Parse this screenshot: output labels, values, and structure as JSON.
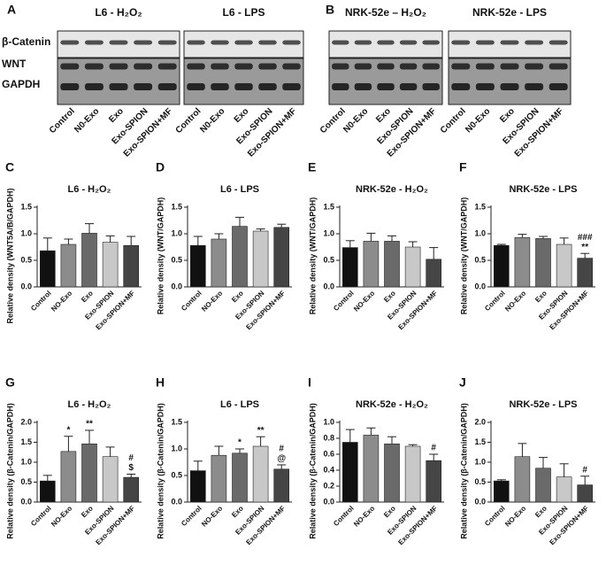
{
  "blot_figures": [
    {
      "letter": "A",
      "row_labels": [
        "β-Catenin",
        "WNT",
        "GAPDH"
      ],
      "blots": [
        {
          "title": "L6 - H₂O₂",
          "lanes": [
            "Control",
            "N0-Exo",
            "Exo",
            "Exo-SPION",
            "Exo-SPION+MF"
          ]
        },
        {
          "title": "L6 - LPS",
          "lanes": [
            "Control",
            "N0-Exo",
            "Exo",
            "Exo-SPION",
            "Exo-SPION+MF"
          ]
        }
      ]
    },
    {
      "letter": "B",
      "blots": [
        {
          "title": "NRK-52e – H₂O₂",
          "lanes": [
            "Control",
            "N0-Exo",
            "Exo",
            "Exo-SPION",
            "Exo-SPION+MF"
          ]
        },
        {
          "title": "NRK-52e - LPS",
          "lanes": [
            "Control",
            "N0-Exo",
            "Exo",
            "Exo-SPION",
            "Exo-SPION+MF"
          ]
        }
      ]
    }
  ],
  "chart_data": [
    {
      "type": "bar",
      "panel": "C",
      "title": "L6 - H₂O₂",
      "y_label": "Relative density (WNT5A/B/GAPDH)",
      "categories": [
        "Control",
        "NO-Exo",
        "Exo",
        "Exo-SPION",
        "Exo-SPION+MF"
      ],
      "values": [
        0.68,
        0.8,
        1.01,
        0.84,
        0.78
      ],
      "errors": [
        0.24,
        0.1,
        0.18,
        0.12,
        0.17
      ],
      "colors": [
        "#111111",
        "#8c8c8c",
        "#6a6a6a",
        "#c8c8c8",
        "#454545"
      ],
      "ylim": [
        0,
        1.5
      ],
      "yticks": [
        {
          "value": 0,
          "label": "0.0"
        },
        0.5,
        {
          "value": 1,
          "label": "1.0"
        },
        1.5
      ]
    },
    {
      "type": "bar",
      "panel": "D",
      "title": "L6 - LPS",
      "y_label": "Relative density (WNT/GAPDH)",
      "categories": [
        "Control",
        "NO-Exo",
        "Exo",
        "Exo-SPION",
        "Exo-SPION+MF"
      ],
      "values": [
        0.78,
        0.9,
        1.14,
        1.05,
        1.12
      ],
      "errors": [
        0.17,
        0.1,
        0.17,
        0.04,
        0.06
      ],
      "colors": [
        "#111111",
        "#8c8c8c",
        "#6a6a6a",
        "#c8c8c8",
        "#454545"
      ],
      "ylim": [
        0,
        1.5
      ],
      "yticks": [
        {
          "value": 0,
          "label": "0.0"
        },
        0.5,
        {
          "value": 1,
          "label": "1.0"
        },
        1.5
      ]
    },
    {
      "type": "bar",
      "panel": "E",
      "title": "NRK-52e - H₂O₂",
      "y_label": "Relative density (WNT/GAPDH)",
      "categories": [
        "Control",
        "NO-Exo",
        "Exo",
        "Exo-SPION",
        "Exo-SPION+MF"
      ],
      "values": [
        0.74,
        0.86,
        0.86,
        0.75,
        0.52
      ],
      "errors": [
        0.13,
        0.15,
        0.1,
        0.1,
        0.22
      ],
      "colors": [
        "#111111",
        "#8c8c8c",
        "#6a6a6a",
        "#c8c8c8",
        "#454545"
      ],
      "ylim": [
        0,
        1.5
      ],
      "yticks": [
        {
          "value": 0,
          "label": "0.0"
        },
        0.5,
        {
          "value": 1,
          "label": "1.0"
        },
        1.5
      ]
    },
    {
      "type": "bar",
      "panel": "F",
      "title": "NRK-52e - LPS",
      "y_label": "Relative density (WNT/GAPDH)",
      "categories": [
        "Control",
        "NO-Exo",
        "Exo",
        "Exo-SPION",
        "Exo-SPION+MF"
      ],
      "values": [
        0.78,
        0.93,
        0.91,
        0.8,
        0.54
      ],
      "errors": [
        0.02,
        0.06,
        0.04,
        0.12,
        0.09
      ],
      "annotations": [
        null,
        null,
        null,
        null,
        [
          "###",
          "**"
        ]
      ],
      "colors": [
        "#111111",
        "#8c8c8c",
        "#6a6a6a",
        "#c8c8c8",
        "#454545"
      ],
      "ylim": [
        0,
        1.5
      ],
      "yticks": [
        {
          "value": 0,
          "label": "0.0"
        },
        0.5,
        {
          "value": 1,
          "label": "1.0"
        },
        1.5
      ]
    },
    {
      "type": "bar",
      "panel": "G",
      "title": "L6 - H₂O₂",
      "y_label": "Relative density (β-Catenin/GAPDH)",
      "categories": [
        "Control",
        "NO-Exo",
        "Exo",
        "Exo-SPION",
        "Exo-SPION+MF"
      ],
      "values": [
        0.53,
        1.27,
        1.46,
        1.14,
        0.62
      ],
      "errors": [
        0.14,
        0.38,
        0.34,
        0.24,
        0.08
      ],
      "annotations": [
        null,
        [
          "*"
        ],
        [
          "**"
        ],
        null,
        [
          "#",
          "$"
        ]
      ],
      "colors": [
        "#111111",
        "#8c8c8c",
        "#6a6a6a",
        "#c8c8c8",
        "#454545"
      ],
      "ylim": [
        0,
        2
      ],
      "yticks": [
        {
          "value": 0,
          "label": "0.0"
        },
        0.5,
        {
          "value": 1,
          "label": "1.0"
        },
        1.5,
        {
          "value": 2,
          "label": "2.0"
        }
      ]
    },
    {
      "type": "bar",
      "panel": "H",
      "title": "L6 - LPS",
      "y_label": "Relative density (β-Catenin/GAPDH)",
      "categories": [
        "Control",
        "NO-Exo",
        "Exo",
        "Exo-SPION",
        "Exo-SPION+MF"
      ],
      "values": [
        0.59,
        0.88,
        0.92,
        1.05,
        0.62
      ],
      "errors": [
        0.18,
        0.17,
        0.08,
        0.18,
        0.08
      ],
      "annotations": [
        null,
        null,
        [
          "*"
        ],
        [
          "**"
        ],
        [
          "#",
          "@"
        ]
      ],
      "colors": [
        "#111111",
        "#8c8c8c",
        "#6a6a6a",
        "#c8c8c8",
        "#454545"
      ],
      "ylim": [
        0,
        1.5
      ],
      "yticks": [
        {
          "value": 0,
          "label": "0.0"
        },
        0.5,
        {
          "value": 1,
          "label": "1.0"
        },
        1.5
      ]
    },
    {
      "type": "bar",
      "panel": "I",
      "title": "NRK-52e - H₂O₂",
      "y_label": "Relative density (β-Catenin/GAPDH)",
      "categories": [
        "Control",
        "NO-Exo",
        "Exo",
        "Exo-SPION",
        "Exo-SPION+MF"
      ],
      "values": [
        0.75,
        0.84,
        0.73,
        0.7,
        0.52
      ],
      "errors": [
        0.16,
        0.09,
        0.09,
        0.02,
        0.08
      ],
      "annotations": [
        null,
        null,
        null,
        null,
        [
          "#"
        ]
      ],
      "colors": [
        "#111111",
        "#8c8c8c",
        "#6a6a6a",
        "#c8c8c8",
        "#454545"
      ],
      "ylim": [
        0,
        1
      ],
      "yticks": [
        {
          "value": 0,
          "label": "0.0"
        },
        0.2,
        0.4,
        0.6,
        0.8,
        {
          "value": 1,
          "label": "1.0"
        }
      ]
    },
    {
      "type": "bar",
      "panel": "J",
      "title": "NRK-52e - LPS",
      "y_label": "Relative density (β-Catenin/GAPDH)",
      "categories": [
        "Control",
        "NO-Exo",
        "Exo",
        "Exo-SPION",
        "Exo-SPION+MF"
      ],
      "values": [
        0.53,
        1.14,
        0.85,
        0.63,
        0.43
      ],
      "errors": [
        0.03,
        0.33,
        0.27,
        0.33,
        0.22
      ],
      "annotations": [
        null,
        null,
        null,
        null,
        [
          "#"
        ]
      ],
      "colors": [
        "#111111",
        "#8c8c8c",
        "#6a6a6a",
        "#c8c8c8",
        "#454545"
      ],
      "ylim": [
        0,
        2
      ],
      "yticks": [
        {
          "value": 0,
          "label": "0.0"
        },
        0.5,
        {
          "value": 1,
          "label": "1.0"
        },
        1.5,
        {
          "value": 2,
          "label": "2.0"
        }
      ]
    }
  ]
}
